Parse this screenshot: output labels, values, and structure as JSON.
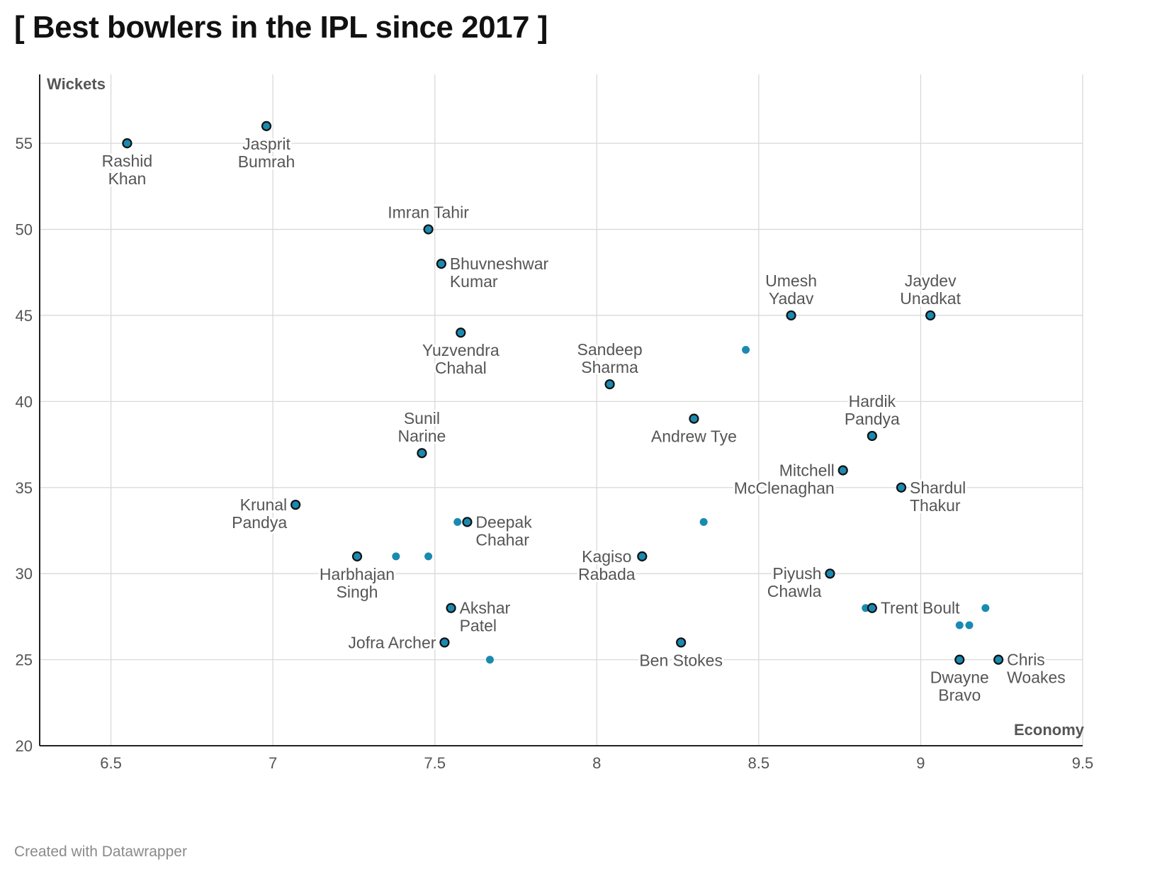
{
  "title": "[ Best bowlers in the IPL since 2017 ]",
  "footer": "Created with Datawrapper",
  "colors": {
    "point_fill": "#1a8ab0",
    "point_stroke": "#111111",
    "grid": "#d9d9d9",
    "text": "#555555"
  },
  "chart_data": {
    "type": "scatter",
    "xlabel": "Economy",
    "ylabel": "Wickets",
    "xlim": [
      6.28,
      9.5
    ],
    "ylim": [
      20,
      59
    ],
    "xticks": [
      "6.5",
      "7",
      "7.5",
      "8",
      "8.5",
      "9",
      "9.5"
    ],
    "yticks": [
      "20",
      "25",
      "30",
      "35",
      "40",
      "45",
      "50",
      "55"
    ],
    "grid": true,
    "points": [
      {
        "x": 6.55,
        "y": 55,
        "label": [
          "Rashid",
          "Khan"
        ],
        "pos": "below",
        "highlight": true
      },
      {
        "x": 6.98,
        "y": 56,
        "label": [
          "Jasprit",
          "Bumrah"
        ],
        "pos": "below",
        "highlight": true
      },
      {
        "x": 7.48,
        "y": 50,
        "label": [
          "Imran Tahir"
        ],
        "pos": "above",
        "highlight": true
      },
      {
        "x": 7.52,
        "y": 48,
        "label": [
          "Bhuvneshwar",
          "Kumar"
        ],
        "pos": "right",
        "highlight": true
      },
      {
        "x": 7.58,
        "y": 44,
        "label": [
          "Yuzvendra",
          "Chahal"
        ],
        "pos": "below",
        "highlight": true
      },
      {
        "x": 8.04,
        "y": 41,
        "label": [
          "Sandeep",
          "Sharma"
        ],
        "pos": "above",
        "highlight": true
      },
      {
        "x": 8.6,
        "y": 45,
        "label": [
          "Umesh",
          "Yadav"
        ],
        "pos": "above",
        "highlight": true
      },
      {
        "x": 9.03,
        "y": 45,
        "label": [
          "Jaydev",
          "Unadkat"
        ],
        "pos": "above",
        "highlight": true
      },
      {
        "x": 8.3,
        "y": 39,
        "label": [
          "Andrew Tye"
        ],
        "pos": "below",
        "highlight": true
      },
      {
        "x": 8.85,
        "y": 38,
        "label": [
          "Hardik",
          "Pandya"
        ],
        "pos": "above",
        "highlight": true
      },
      {
        "x": 7.46,
        "y": 37,
        "label": [
          "Sunil",
          "Narine"
        ],
        "pos": "above",
        "highlight": true
      },
      {
        "x": 8.76,
        "y": 36,
        "label": [
          "Mitchell",
          "McClenaghan"
        ],
        "pos": "left",
        "highlight": true
      },
      {
        "x": 8.94,
        "y": 35,
        "label": [
          "Shardul",
          "Thakur"
        ],
        "pos": "right",
        "highlight": true
      },
      {
        "x": 7.07,
        "y": 34,
        "label": [
          "Krunal",
          "Pandya"
        ],
        "pos": "left",
        "highlight": true
      },
      {
        "x": 7.6,
        "y": 33,
        "label": [
          "Deepak",
          "Chahar"
        ],
        "pos": "right",
        "highlight": true
      },
      {
        "x": 7.26,
        "y": 31,
        "label": [
          "Harbhajan",
          "Singh"
        ],
        "pos": "below",
        "highlight": true
      },
      {
        "x": 8.14,
        "y": 31,
        "label": [
          "Kagiso",
          "Rabada"
        ],
        "pos": "belowleft",
        "highlight": true
      },
      {
        "x": 8.72,
        "y": 30,
        "label": [
          "Piyush",
          "Chawla"
        ],
        "pos": "left",
        "highlight": true
      },
      {
        "x": 7.55,
        "y": 28,
        "label": [
          "Akshar",
          "Patel"
        ],
        "pos": "right",
        "highlight": true
      },
      {
        "x": 8.85,
        "y": 28,
        "label": [
          "Trent Boult"
        ],
        "pos": "right",
        "highlight": true
      },
      {
        "x": 7.53,
        "y": 26,
        "label": [
          "Jofra Archer"
        ],
        "pos": "left",
        "highlight": true
      },
      {
        "x": 8.26,
        "y": 26,
        "label": [
          "Ben Stokes"
        ],
        "pos": "below",
        "highlight": true
      },
      {
        "x": 9.12,
        "y": 25,
        "label": [
          "Dwayne",
          "Bravo"
        ],
        "pos": "below",
        "highlight": true
      },
      {
        "x": 9.24,
        "y": 25,
        "label": [
          "Chris",
          "Woakes"
        ],
        "pos": "right",
        "highlight": true
      },
      {
        "x": 8.46,
        "y": 43,
        "highlight": false
      },
      {
        "x": 8.33,
        "y": 33,
        "highlight": false
      },
      {
        "x": 7.57,
        "y": 33,
        "highlight": false
      },
      {
        "x": 7.38,
        "y": 31,
        "highlight": false
      },
      {
        "x": 7.48,
        "y": 31,
        "highlight": false
      },
      {
        "x": 8.83,
        "y": 28,
        "highlight": false
      },
      {
        "x": 9.2,
        "y": 28,
        "highlight": false
      },
      {
        "x": 9.12,
        "y": 27,
        "highlight": false
      },
      {
        "x": 9.15,
        "y": 27,
        "highlight": false
      },
      {
        "x": 7.67,
        "y": 25,
        "highlight": false
      }
    ]
  }
}
